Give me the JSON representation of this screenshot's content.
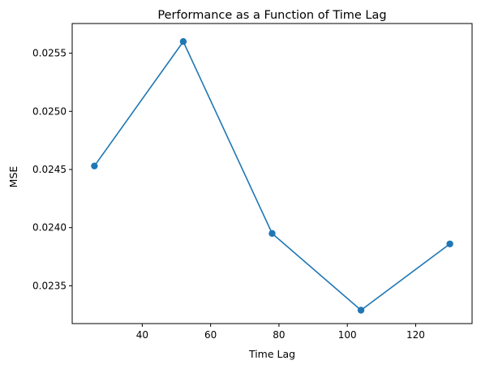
{
  "chart_data": {
    "type": "line",
    "title": "Performance as a Function of Time Lag",
    "xlabel": "Time Lag",
    "ylabel": "MSE",
    "x": [
      26,
      52,
      78,
      104,
      130
    ],
    "series": [
      {
        "values": [
          0.02453,
          0.0256,
          0.02395,
          0.02329,
          0.02386
        ],
        "color": "#1f77b4",
        "marker": "circle"
      }
    ],
    "xlim": [
      19.5,
      136.5
    ],
    "ylim": [
      0.023175,
      0.025755
    ],
    "xticks": [
      40,
      60,
      80,
      100,
      120
    ],
    "xtick_labels": [
      "40",
      "60",
      "80",
      "100",
      "120"
    ],
    "yticks": [
      0.0235,
      0.024,
      0.0245,
      0.025,
      0.0255
    ],
    "ytick_labels": [
      "0.0235",
      "0.0240",
      "0.0245",
      "0.0250",
      "0.0255"
    ],
    "grid": false,
    "legend": "none"
  }
}
